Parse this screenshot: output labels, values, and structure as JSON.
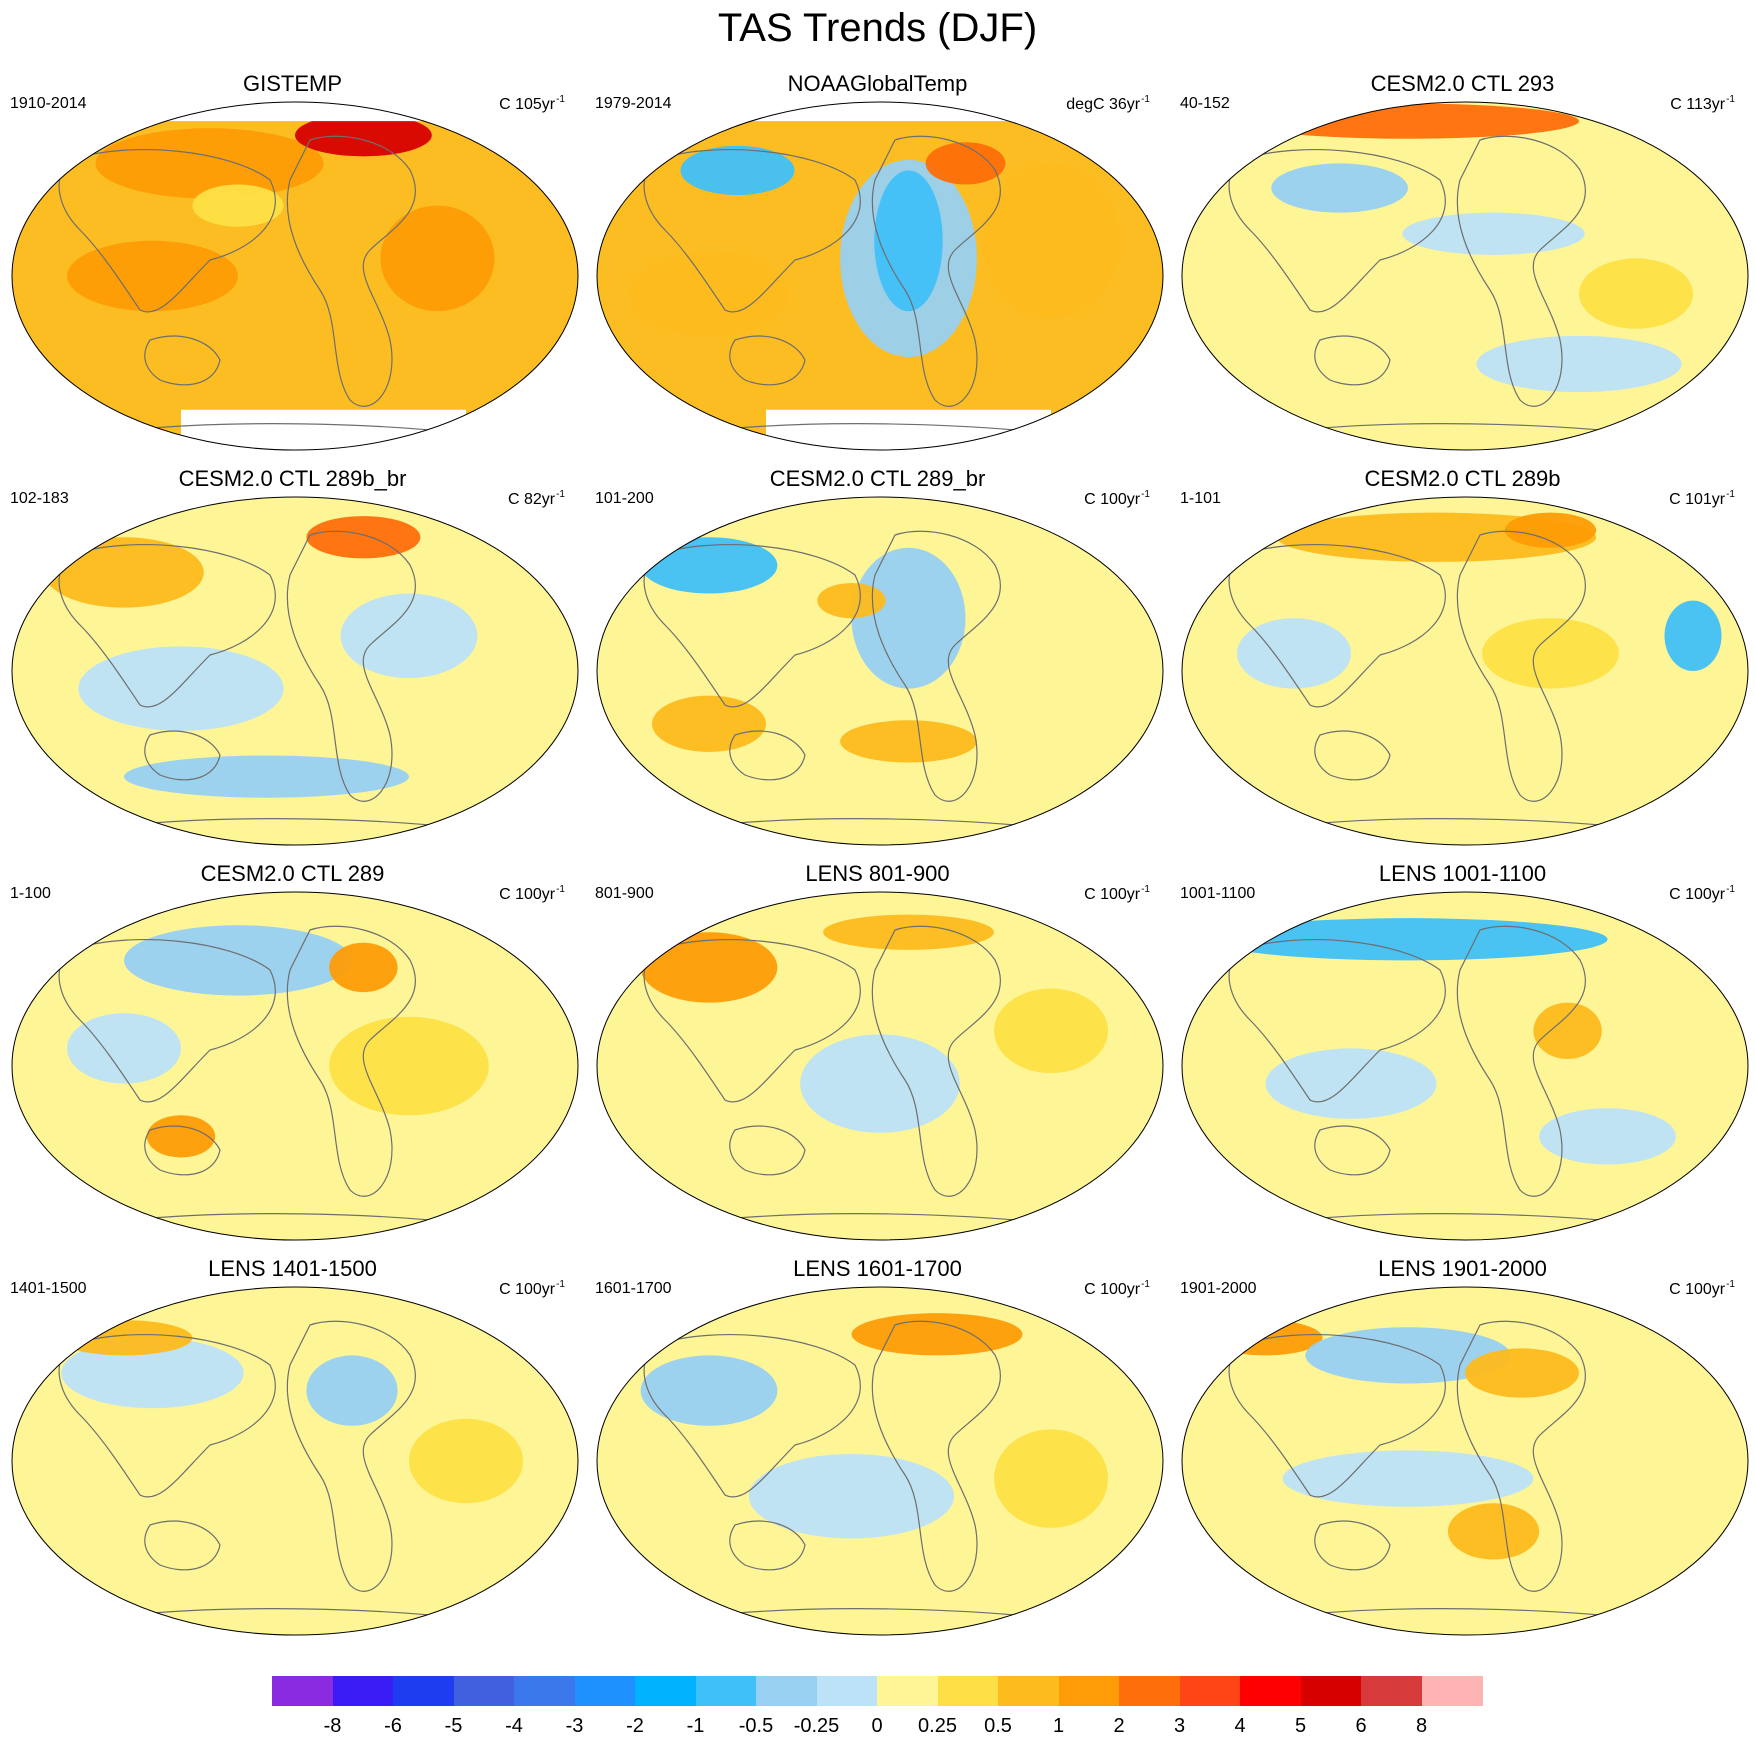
{
  "title": "TAS Trends (DJF)",
  "panels": [
    {
      "title": "GISTEMP",
      "left": "1910-2014",
      "right": "C 105yr",
      "right_sup": "-1",
      "base": "#fbbd22",
      "mask_top": true,
      "mask_bottom": true
    },
    {
      "title": "NOAAGlobalTemp",
      "left": "1979-2014",
      "right": "degC 36yr",
      "right_sup": "-1",
      "base": "#fbbd22",
      "mask_top": true,
      "mask_bottom": true
    },
    {
      "title": "CESM2.0 CTL 293",
      "left": "40-152",
      "right": "C 113yr",
      "right_sup": "-1",
      "base": "#fef597",
      "mask_top": false,
      "mask_bottom": false
    },
    {
      "title": "CESM2.0 CTL 289b_br",
      "left": "102-183",
      "right": "C 82yr",
      "right_sup": "-1",
      "base": "#fef597",
      "mask_top": false,
      "mask_bottom": false
    },
    {
      "title": "CESM2.0 CTL 289_br",
      "left": "101-200",
      "right": "C 100yr",
      "right_sup": "-1",
      "base": "#fef597",
      "mask_top": false,
      "mask_bottom": false
    },
    {
      "title": "CESM2.0 CTL 289b",
      "left": "1-101",
      "right": "C 101yr",
      "right_sup": "-1",
      "base": "#fef597",
      "mask_top": false,
      "mask_bottom": false
    },
    {
      "title": "CESM2.0 CTL 289",
      "left": "1-100",
      "right": "C 100yr",
      "right_sup": "-1",
      "base": "#fef597",
      "mask_top": false,
      "mask_bottom": false
    },
    {
      "title": "LENS 801-900",
      "left": "801-900",
      "right": "C 100yr",
      "right_sup": "-1",
      "base": "#fef597",
      "mask_top": false,
      "mask_bottom": false
    },
    {
      "title": "LENS 1001-1100",
      "left": "1001-1100",
      "right": "C 100yr",
      "right_sup": "-1",
      "base": "#fef597",
      "mask_top": false,
      "mask_bottom": false
    },
    {
      "title": "LENS 1401-1500",
      "left": "1401-1500",
      "right": "C 100yr",
      "right_sup": "-1",
      "base": "#fef597",
      "mask_top": false,
      "mask_bottom": false
    },
    {
      "title": "LENS 1601-1700",
      "left": "1601-1700",
      "right": "C 100yr",
      "right_sup": "-1",
      "base": "#fef597",
      "mask_top": false,
      "mask_bottom": false
    },
    {
      "title": "LENS 1901-2000",
      "left": "1901-2000",
      "right": "C 100yr",
      "right_sup": "-1",
      "base": "#fef597",
      "mask_top": false,
      "mask_bottom": false
    }
  ],
  "colorbar": {
    "colors": [
      "#8a2be2",
      "#3a1cf6",
      "#1e3cf0",
      "#4060e0",
      "#3a78ec",
      "#1e90ff",
      "#00b2ff",
      "#40c0f8",
      "#98d0f2",
      "#bce2f8",
      "#fef597",
      "#fee046",
      "#fdbb1e",
      "#fd9c06",
      "#fe6e0a",
      "#ff4416",
      "#ff0000",
      "#d70000",
      "#d63a3a",
      "#ffb4b4"
    ],
    "labels": [
      "-8",
      "-6",
      "-5",
      "-4",
      "-3",
      "-2",
      "-1",
      "-0.5",
      "-0.25",
      "0",
      "0.25",
      "0.5",
      "1",
      "2",
      "3",
      "4",
      "5",
      "6",
      "8"
    ]
  },
  "blobs": [
    [
      [
        0.35,
        0.18,
        0.2,
        0.1,
        "#fd9c06"
      ],
      [
        0.62,
        0.1,
        0.12,
        0.06,
        "#d70000"
      ],
      [
        0.25,
        0.5,
        0.15,
        0.1,
        "#fd9c06"
      ],
      [
        0.75,
        0.45,
        0.1,
        0.15,
        "#fd9c06"
      ],
      [
        0.4,
        0.3,
        0.08,
        0.06,
        "#fee046"
      ]
    ],
    [
      [
        0.25,
        0.2,
        0.1,
        0.07,
        "#40c0f8"
      ],
      [
        0.55,
        0.45,
        0.12,
        0.28,
        "#98d0f2"
      ],
      [
        0.55,
        0.4,
        0.06,
        0.2,
        "#40c0f8"
      ],
      [
        0.2,
        0.55,
        0.14,
        0.12,
        "#fdbb1e"
      ],
      [
        0.8,
        0.4,
        0.12,
        0.22,
        "#fdbb1e"
      ],
      [
        0.65,
        0.18,
        0.07,
        0.06,
        "#fe6e0a"
      ]
    ],
    [
      [
        0.4,
        0.06,
        0.3,
        0.05,
        "#fe6e0a"
      ],
      [
        0.28,
        0.25,
        0.12,
        0.07,
        "#98d0f2"
      ],
      [
        0.55,
        0.38,
        0.16,
        0.06,
        "#bce2f8"
      ],
      [
        0.7,
        0.75,
        0.18,
        0.08,
        "#bce2f8"
      ],
      [
        0.8,
        0.55,
        0.1,
        0.1,
        "#fee046"
      ]
    ],
    [
      [
        0.2,
        0.22,
        0.14,
        0.1,
        "#fdbb1e"
      ],
      [
        0.62,
        0.12,
        0.1,
        0.06,
        "#fe6e0a"
      ],
      [
        0.3,
        0.55,
        0.18,
        0.12,
        "#bce2f8"
      ],
      [
        0.7,
        0.4,
        0.12,
        0.12,
        "#bce2f8"
      ],
      [
        0.45,
        0.8,
        0.25,
        0.06,
        "#98d0f2"
      ]
    ],
    [
      [
        0.2,
        0.2,
        0.12,
        0.08,
        "#40c0f8"
      ],
      [
        0.55,
        0.35,
        0.1,
        0.2,
        "#98d0f2"
      ],
      [
        0.45,
        0.3,
        0.06,
        0.05,
        "#fdbb1e"
      ],
      [
        0.2,
        0.65,
        0.1,
        0.08,
        "#fdbb1e"
      ],
      [
        0.55,
        0.7,
        0.12,
        0.06,
        "#fdbb1e"
      ]
    ],
    [
      [
        0.45,
        0.12,
        0.28,
        0.07,
        "#fdbb1e"
      ],
      [
        0.65,
        0.1,
        0.08,
        0.05,
        "#fd9c06"
      ],
      [
        0.2,
        0.45,
        0.1,
        0.1,
        "#bce2f8"
      ],
      [
        0.65,
        0.45,
        0.12,
        0.1,
        "#fee046"
      ],
      [
        0.9,
        0.4,
        0.05,
        0.1,
        "#40c0f8"
      ]
    ],
    [
      [
        0.4,
        0.2,
        0.2,
        0.1,
        "#98d0f2"
      ],
      [
        0.62,
        0.22,
        0.06,
        0.07,
        "#fd9c06"
      ],
      [
        0.3,
        0.7,
        0.06,
        0.06,
        "#fd9c06"
      ],
      [
        0.7,
        0.5,
        0.14,
        0.14,
        "#fee046"
      ],
      [
        0.2,
        0.45,
        0.1,
        0.1,
        "#bce2f8"
      ]
    ],
    [
      [
        0.2,
        0.22,
        0.12,
        0.1,
        "#fd9c06"
      ],
      [
        0.55,
        0.12,
        0.15,
        0.05,
        "#fdbb1e"
      ],
      [
        0.5,
        0.55,
        0.14,
        0.14,
        "#bce2f8"
      ],
      [
        0.8,
        0.4,
        0.1,
        0.12,
        "#fee046"
      ]
    ],
    [
      [
        0.4,
        0.14,
        0.35,
        0.06,
        "#40c0f8"
      ],
      [
        0.68,
        0.4,
        0.06,
        0.08,
        "#fdbb1e"
      ],
      [
        0.3,
        0.55,
        0.15,
        0.1,
        "#bce2f8"
      ],
      [
        0.75,
        0.7,
        0.12,
        0.08,
        "#bce2f8"
      ]
    ],
    [
      [
        0.25,
        0.25,
        0.16,
        0.1,
        "#bce2f8"
      ],
      [
        0.2,
        0.15,
        0.12,
        0.05,
        "#fdbb1e"
      ],
      [
        0.6,
        0.3,
        0.08,
        0.1,
        "#98d0f2"
      ],
      [
        0.8,
        0.5,
        0.1,
        0.12,
        "#fee046"
      ]
    ],
    [
      [
        0.6,
        0.14,
        0.15,
        0.06,
        "#fd9c06"
      ],
      [
        0.2,
        0.3,
        0.12,
        0.1,
        "#98d0f2"
      ],
      [
        0.45,
        0.6,
        0.18,
        0.12,
        "#bce2f8"
      ],
      [
        0.8,
        0.55,
        0.1,
        0.14,
        "#fee046"
      ]
    ],
    [
      [
        0.15,
        0.15,
        0.1,
        0.05,
        "#fd9c06"
      ],
      [
        0.4,
        0.2,
        0.18,
        0.08,
        "#98d0f2"
      ],
      [
        0.6,
        0.25,
        0.1,
        0.07,
        "#fdbb1e"
      ],
      [
        0.4,
        0.55,
        0.22,
        0.08,
        "#bce2f8"
      ],
      [
        0.55,
        0.7,
        0.08,
        0.08,
        "#fdbb1e"
      ]
    ]
  ]
}
